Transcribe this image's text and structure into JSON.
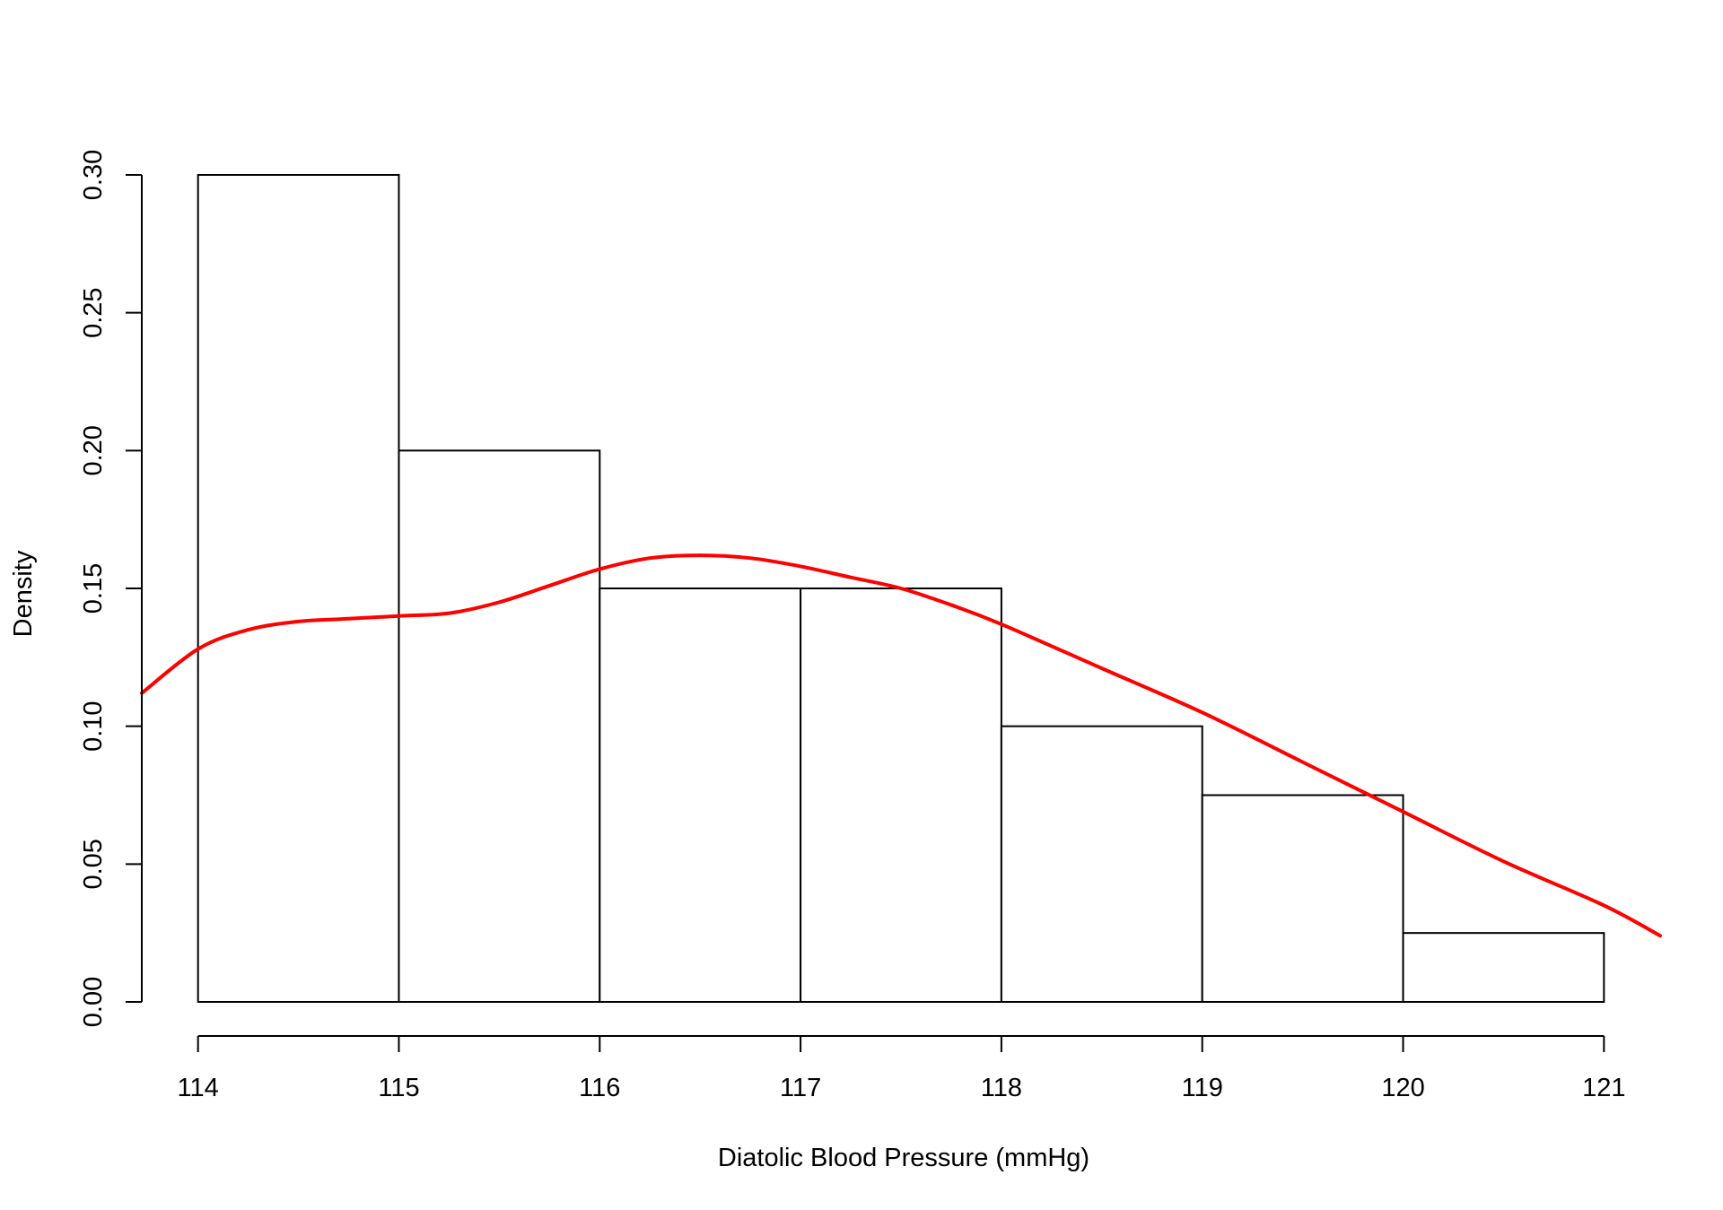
{
  "chart_data": {
    "type": "bar",
    "subtype": "histogram",
    "title": "",
    "xlabel": "Diatolic Blood Pressure (mmHg)",
    "ylabel": "Density",
    "bins": [
      {
        "x0": 114,
        "x1": 115,
        "density": 0.3
      },
      {
        "x0": 115,
        "x1": 116,
        "density": 0.2
      },
      {
        "x0": 116,
        "x1": 117,
        "density": 0.15
      },
      {
        "x0": 117,
        "x1": 118,
        "density": 0.15
      },
      {
        "x0": 118,
        "x1": 119,
        "density": 0.1
      },
      {
        "x0": 119,
        "x1": 120,
        "density": 0.075
      },
      {
        "x0": 120,
        "x1": 121,
        "density": 0.025
      }
    ],
    "density_curve": {
      "color": "#ff0000",
      "x": [
        113.72,
        114.0,
        114.25,
        114.5,
        114.75,
        115.0,
        115.25,
        115.5,
        115.75,
        116.0,
        116.25,
        116.5,
        116.75,
        117.0,
        117.25,
        117.5,
        117.75,
        118.0,
        118.5,
        119.0,
        119.5,
        120.0,
        120.5,
        121.0,
        121.28
      ],
      "y": [
        0.112,
        0.128,
        0.135,
        0.138,
        0.139,
        0.14,
        0.141,
        0.145,
        0.151,
        0.157,
        0.161,
        0.162,
        0.161,
        0.158,
        0.154,
        0.15,
        0.144,
        0.137,
        0.121,
        0.105,
        0.087,
        0.069,
        0.051,
        0.035,
        0.024
      ]
    },
    "xticks": [
      114,
      115,
      116,
      117,
      118,
      119,
      120,
      121
    ],
    "xtick_labels": [
      "114",
      "115",
      "116",
      "117",
      "118",
      "119",
      "120",
      "121"
    ],
    "yticks": [
      0.0,
      0.05,
      0.1,
      0.15,
      0.2,
      0.25,
      0.3
    ],
    "ytick_labels": [
      "0.00",
      "0.05",
      "0.10",
      "0.15",
      "0.20",
      "0.25",
      "0.30"
    ],
    "xlim": [
      113.72,
      121.28
    ],
    "ylim": [
      0,
      0.3
    ],
    "grid": false,
    "bar_fill": "#ffffff",
    "bar_stroke": "#000000"
  }
}
